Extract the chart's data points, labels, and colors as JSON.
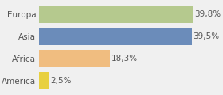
{
  "categories": [
    "Europa",
    "Asia",
    "Africa",
    "America"
  ],
  "values": [
    39.8,
    39.5,
    18.3,
    2.5
  ],
  "labels": [
    "39,8%",
    "39,5%",
    "18,3%",
    "2,5%"
  ],
  "bar_colors": [
    "#b5c98e",
    "#6b8cba",
    "#f0bd80",
    "#e8d040"
  ],
  "background_color": "#f0f0f0",
  "xlim": [
    0,
    46
  ],
  "bar_height": 0.78,
  "ylabel_fontsize": 7.5,
  "label_fontsize": 7.5,
  "label_color": "#555555",
  "grid_color": "#ffffff",
  "grid_linewidth": 1.2
}
